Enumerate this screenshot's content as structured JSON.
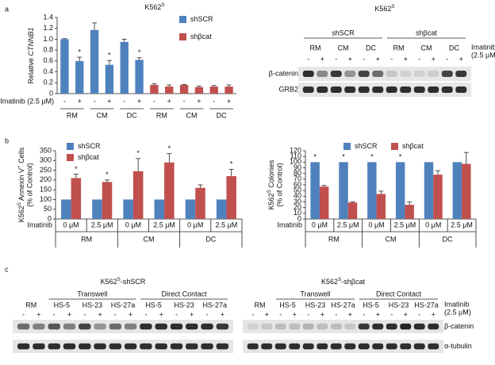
{
  "panels": [
    "a",
    "b",
    "c"
  ],
  "chart_data": [
    {
      "type": "bar",
      "title": [
        {
          "text": "K562"
        },
        {
          "text": "S",
          "sup": true
        }
      ],
      "ylabel": [
        {
          "text": "Relative "
        },
        {
          "text": "CTNNB1",
          "italic": true
        }
      ],
      "xlabel": "Imatinib (2.5 μM)",
      "categories": [
        "-",
        "+",
        "-",
        "+",
        "-",
        "+",
        "-",
        "+",
        "-",
        "+",
        "-",
        "+"
      ],
      "groups": [
        "RM",
        "CM",
        "DC",
        "RM",
        "CM",
        "DC"
      ],
      "series": [
        {
          "name": "shSCR",
          "color": "#4f81bd",
          "values": [
            1,
            0.6,
            1.17,
            0.53,
            0.95,
            0.62,
            null,
            null,
            null,
            null,
            null,
            null
          ],
          "errors": [
            0.01,
            0.07,
            0.13,
            0.08,
            0.05,
            0.04,
            null,
            null,
            null,
            null,
            null,
            null
          ]
        },
        {
          "name": "shβcat",
          "color": "#c0504d",
          "values": [
            null,
            null,
            null,
            null,
            null,
            null,
            0.16,
            0.13,
            0.16,
            0.12,
            0.13,
            0.13
          ],
          "errors": [
            null,
            null,
            null,
            null,
            null,
            null,
            0.02,
            0.03,
            0.01,
            0.02,
            0.02,
            0.03
          ]
        }
      ],
      "stars": [
        null,
        "*",
        null,
        "*",
        null,
        "*",
        null,
        null,
        null,
        null,
        null,
        null
      ],
      "ylim": [
        0,
        1.4
      ],
      "yticks": [
        0,
        0.2,
        0.4,
        0.6,
        0.8,
        {
          "value": 1,
          "label": "1.0"
        },
        1.2,
        1.4
      ],
      "legend": "top-right"
    },
    {
      "type": "bar",
      "ylabel": [
        {
          "text": "K562"
        },
        {
          "text": "S",
          "sup": true
        },
        {
          "text": " Annexin V"
        },
        {
          "text": "+",
          "sup": true
        },
        {
          "text": " Cells"
        }
      ],
      "ylabel2": "(% of Control)",
      "xlabel": "Imatinib",
      "categories": [
        "0 μM",
        "2.5 μM",
        "0 μM",
        "2.5 μM",
        "0 μM",
        "2.5 μM"
      ],
      "groups": [
        "RM",
        "CM",
        "DC"
      ],
      "series": [
        {
          "name": "shSCR",
          "color": "#4f81bd",
          "values": [
            100,
            100,
            100,
            100,
            100,
            100
          ]
        },
        {
          "name": "shβcat",
          "color": "#c0504d",
          "values": [
            210,
            190,
            245,
            290,
            160,
            220
          ],
          "errors": [
            20,
            10,
            65,
            45,
            15,
            35
          ]
        }
      ],
      "stars": [
        "*",
        "*",
        "*",
        "*",
        null,
        "*"
      ],
      "ylim": [
        0,
        350
      ],
      "yticks": [
        0,
        50,
        100,
        150,
        200,
        250,
        300,
        350
      ],
      "legend": "top-left"
    },
    {
      "type": "bar",
      "ylabel": [
        {
          "text": "K562"
        },
        {
          "text": "S",
          "sup": true
        },
        {
          "text": " Colonies"
        }
      ],
      "ylabel2": "(% of Control)",
      "xlabel": "Imatinib",
      "categories": [
        "0 μM",
        "2.5 μM",
        "0 μM",
        "2.5 μM",
        "0 μM",
        "2.5 μM"
      ],
      "groups": [
        "RM",
        "CM",
        "DC"
      ],
      "series": [
        {
          "name": "shSCR",
          "color": "#4f81bd",
          "values": [
            100,
            100,
            100,
            100,
            100,
            100
          ]
        },
        {
          "name": "shβcat",
          "color": "#c0504d",
          "values": [
            57,
            29,
            44,
            25,
            78,
            97
          ],
          "errors": [
            2,
            1,
            5,
            5,
            7,
            20
          ]
        }
      ],
      "stars": [
        "*",
        "*",
        "*",
        "*",
        null,
        null
      ],
      "ylim": [
        0,
        120
      ],
      "yticks": [
        0,
        10,
        20,
        30,
        40,
        50,
        60,
        70,
        80,
        90,
        100,
        110,
        120
      ],
      "legend": "top"
    }
  ],
  "blots": [
    {
      "title": [
        {
          "text": "K562"
        },
        {
          "text": "S",
          "sup": true
        }
      ],
      "headers": [
        {
          "text": "shSCR",
          "samples": [
            "RM",
            "CM",
            "DC"
          ]
        },
        {
          "text": "shβcat",
          "samples": [
            "RM",
            "CM",
            "DC"
          ]
        }
      ],
      "lanes": [
        "-",
        "+",
        "-",
        "+",
        "-",
        "+",
        "-",
        "+",
        "-",
        "+",
        "-",
        "+"
      ],
      "treatment": [
        "Imatinib",
        "(2.5 μM)"
      ],
      "rows": [
        "β-catenin",
        "GRB2"
      ]
    },
    {
      "title": [
        {
          "text": "K562"
        },
        {
          "text": "S",
          "sup": true
        },
        {
          "text": "-shSCR"
        }
      ],
      "controls": [
        "RM"
      ],
      "headers": [
        {
          "text": "Transwell",
          "samples": [
            "HS-5",
            "HS-23",
            "HS-27a"
          ]
        },
        {
          "text": "Direct Contact",
          "samples": [
            "HS-5",
            "HS-23",
            "HS-27a"
          ]
        }
      ],
      "lanes": [
        "-",
        "+",
        "-",
        "+",
        "-",
        "+",
        "-",
        "+",
        "-",
        "+",
        "-",
        "+",
        "-",
        "+"
      ]
    },
    {
      "title": [
        {
          "text": "K562"
        },
        {
          "text": "S",
          "sup": true
        },
        {
          "text": "-shβcat"
        }
      ],
      "controls": [
        "RM"
      ],
      "headers": [
        {
          "text": "Transwell",
          "samples": [
            "HS-5",
            "HS-23",
            "HS-27a"
          ]
        },
        {
          "text": "Direct Contact",
          "samples": [
            "HS-5",
            "HS-23",
            "HS-27a"
          ]
        }
      ],
      "lanes": [
        "-",
        "+",
        "-",
        "+",
        "-",
        "+",
        "-",
        "+",
        "-",
        "+",
        "-",
        "+",
        "-",
        "+"
      ],
      "treatment": [
        "Imatinib",
        "(2.5 μM)"
      ],
      "rows": [
        "β-catenin",
        "α-tubulin"
      ]
    }
  ]
}
